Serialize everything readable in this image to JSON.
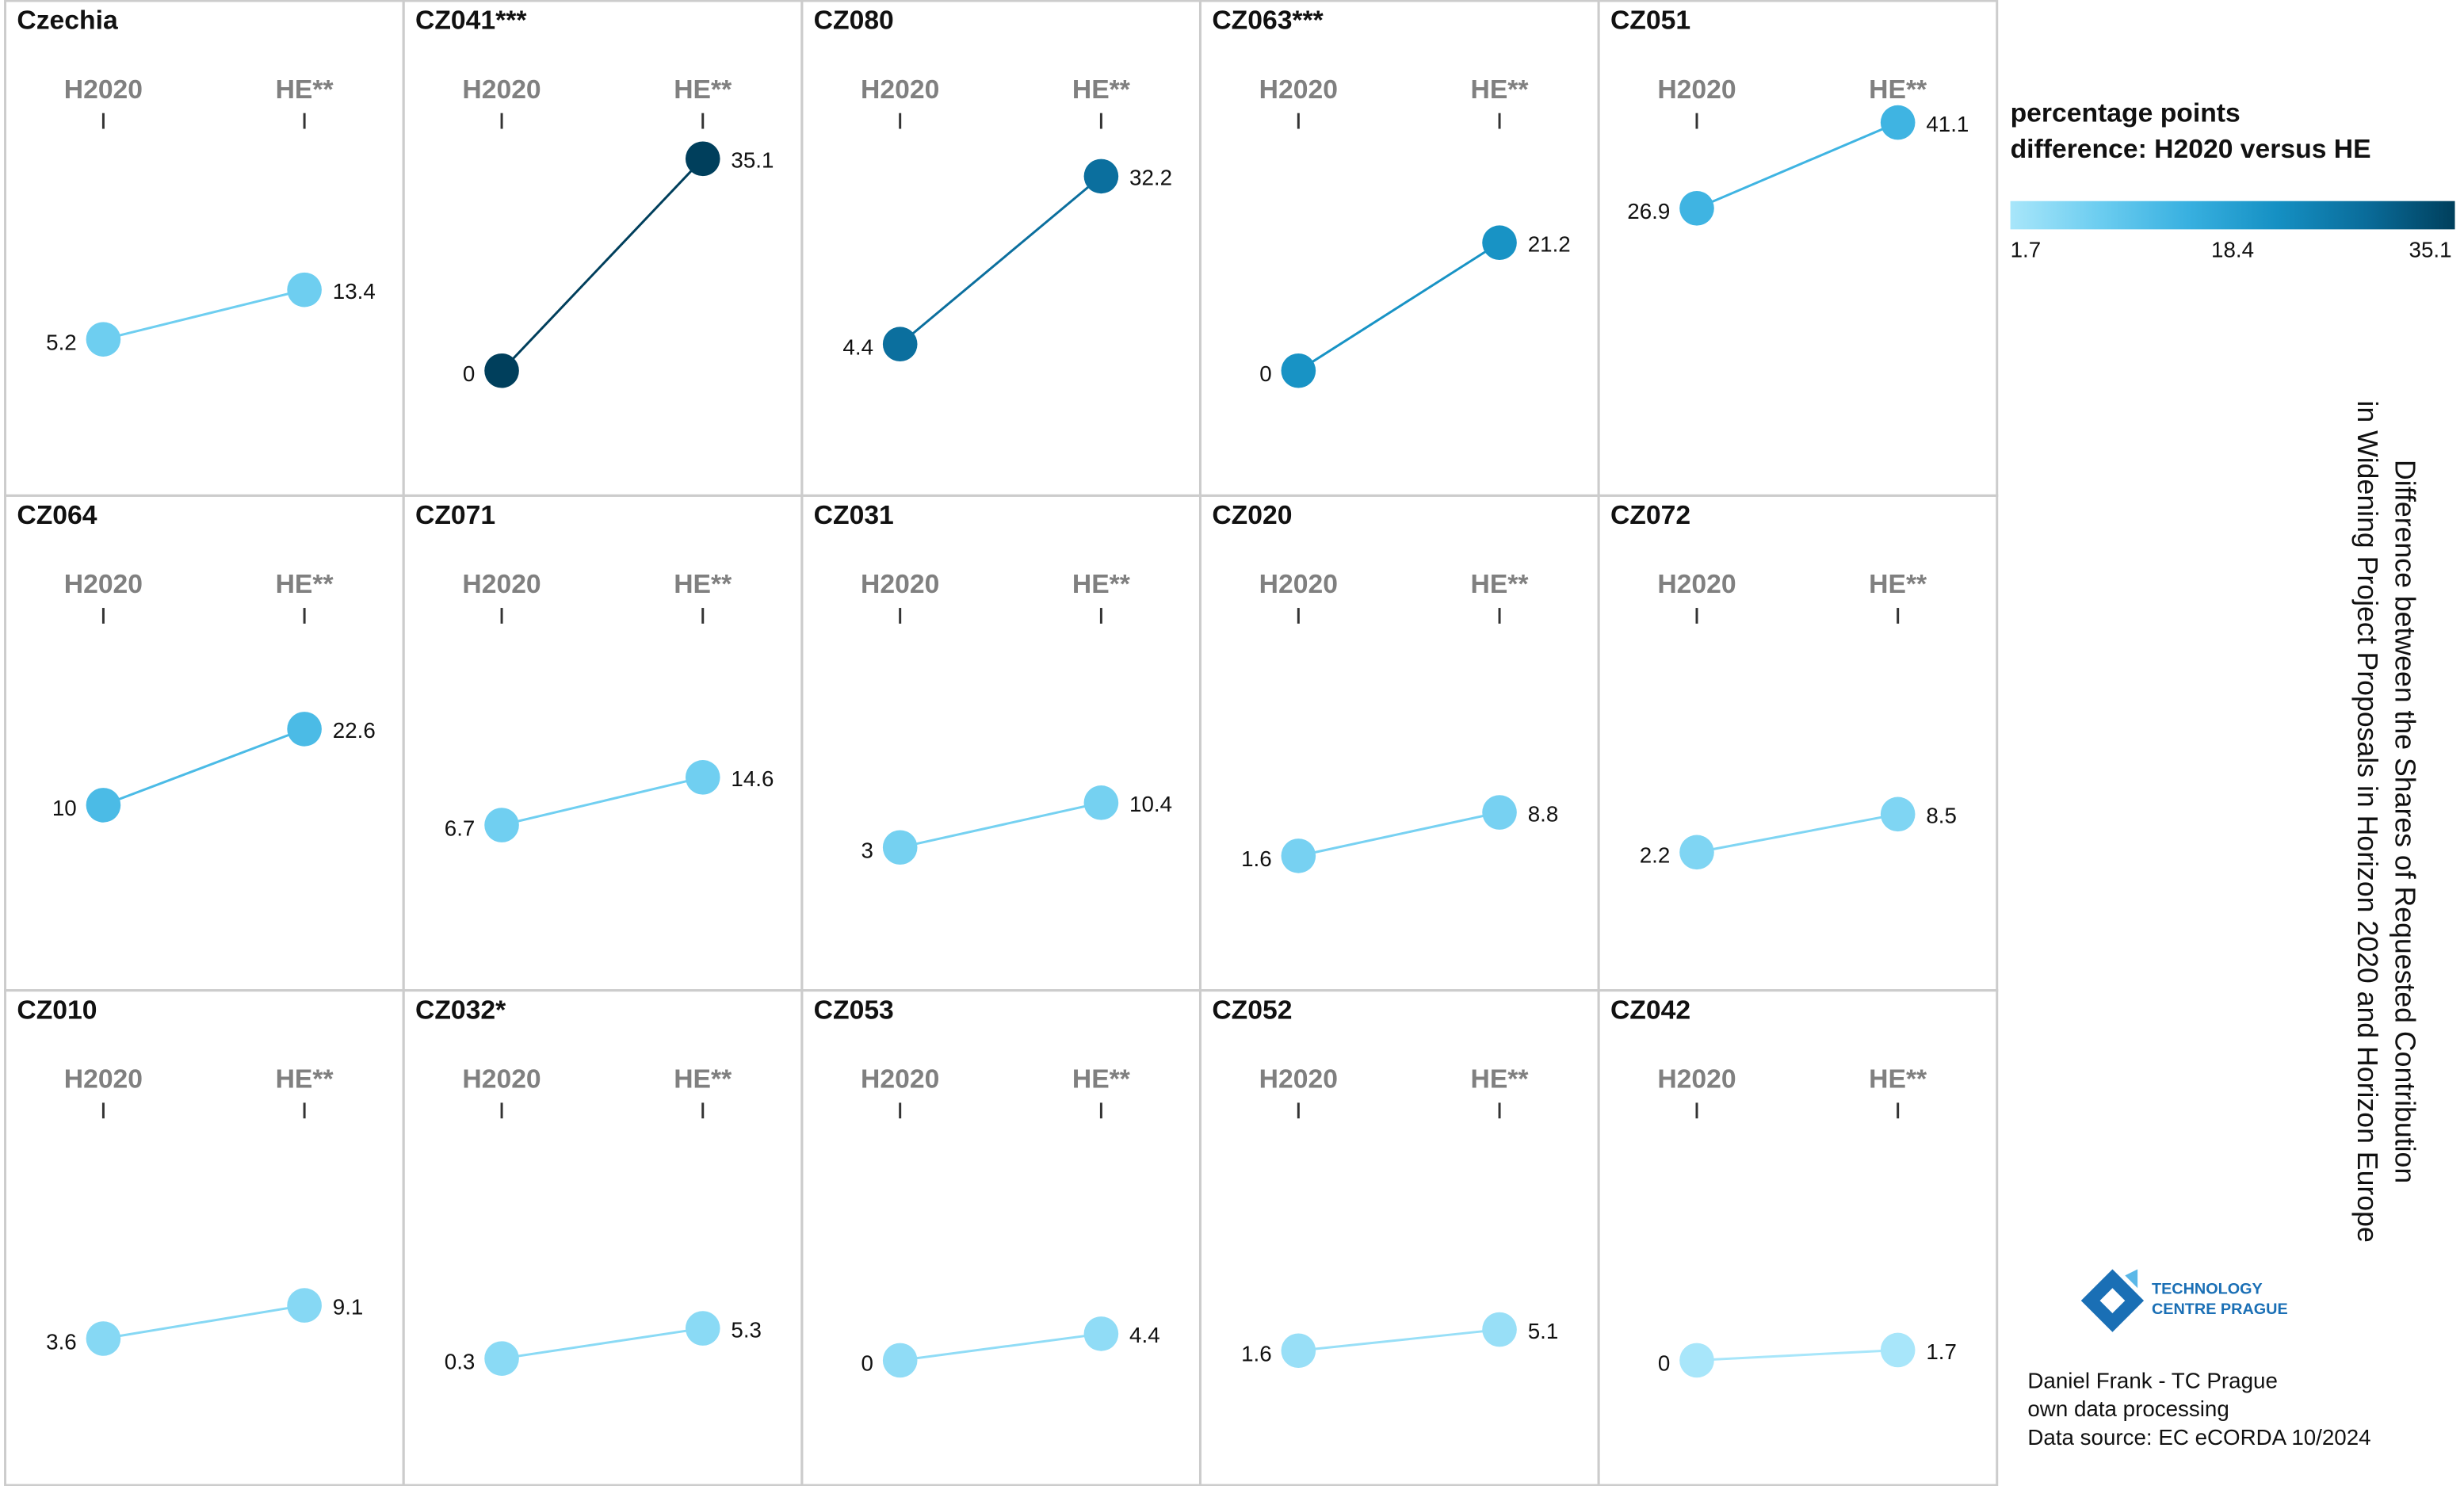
{
  "chart_data": {
    "type": "slope",
    "categories": [
      "H2020",
      "HE**"
    ],
    "panels": [
      {
        "name": "Czechia",
        "values": [
          5.2,
          13.4
        ]
      },
      {
        "name": "CZ041***",
        "values": [
          0,
          35.1
        ]
      },
      {
        "name": "CZ080",
        "values": [
          4.4,
          32.2
        ]
      },
      {
        "name": "CZ063***",
        "values": [
          0,
          21.2
        ]
      },
      {
        "name": "CZ051",
        "values": [
          26.9,
          41.1
        ]
      },
      {
        "name": "CZ064",
        "values": [
          10,
          22.6
        ]
      },
      {
        "name": "CZ071",
        "values": [
          6.7,
          14.6
        ]
      },
      {
        "name": "CZ031",
        "values": [
          3,
          10.4
        ]
      },
      {
        "name": "CZ020",
        "values": [
          1.6,
          8.8
        ]
      },
      {
        "name": "CZ072",
        "values": [
          2.2,
          8.5
        ]
      },
      {
        "name": "CZ010",
        "values": [
          3.6,
          9.1
        ]
      },
      {
        "name": "CZ032*",
        "values": [
          0.3,
          5.3
        ]
      },
      {
        "name": "CZ053",
        "values": [
          0,
          4.4
        ]
      },
      {
        "name": "CZ052",
        "values": [
          1.6,
          5.1
        ]
      },
      {
        "name": "CZ042",
        "values": [
          0,
          1.7
        ]
      }
    ],
    "legend": {
      "title": [
        "percentage points",
        "difference: H2020 versus HE"
      ],
      "ticks": [
        1.7,
        18.4,
        35.1
      ],
      "colorscale": [
        "#a8e6fa",
        "#6ccdf0",
        "#38b0e0",
        "#1590c3",
        "#0a6c9a",
        "#003f5c"
      ]
    },
    "side_title": [
      "Difference between the Shares of Requested Contribution",
      "in Widening Project Proposals in Horizon 2020 and Horizon Europe"
    ]
  },
  "logo": [
    "TECHNOLOGY",
    "CENTRE PRAGUE"
  ],
  "credits": [
    "Daniel Frank - TC Prague",
    "own data processing",
    "Data source: EC eCORDA 10/2024"
  ]
}
